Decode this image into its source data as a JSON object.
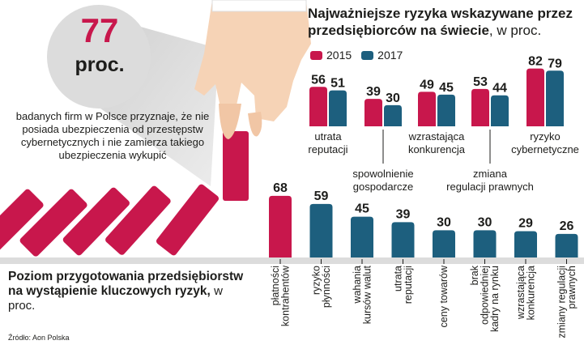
{
  "colors": {
    "red": "#c8174c",
    "teal": "#1d5f7e",
    "grey": "#dcdcdc",
    "black": "#1d1d1b"
  },
  "headline": {
    "value": "77",
    "unit": "proc."
  },
  "description": "badanych firm w Polsce przyznaje, że nie posiada ubezpieczenia od przestępstw cybernetycznych i nie zamierza takiego ubezpieczenia wykupić",
  "source": "Źródło: Aon Polska",
  "chart_data": [
    {
      "type": "bar",
      "title": "Najważniejsze ryzyka wskazywane przez przedsiębiorców na świecie",
      "title_unit": ", w proc.",
      "categories": [
        [
          "utrata",
          "reputacji"
        ],
        [
          "spowolnienie",
          "gospodarcze"
        ],
        [
          "wzrastająca",
          "konkurencja"
        ],
        [
          "zmiana",
          "regulacji prawnych"
        ],
        [
          "ryzyko",
          "cybernetyczne"
        ]
      ],
      "series": [
        {
          "name": "2015",
          "values": [
            56,
            39,
            49,
            53,
            82
          ]
        },
        {
          "name": "2017",
          "values": [
            51,
            30,
            45,
            44,
            79
          ]
        }
      ],
      "legend": "top-left"
    },
    {
      "type": "bar",
      "title": "Poziom przygotowania przedsiębiorstw na wystąpienie kluczowych ryzyk,",
      "title_unit": "w proc.",
      "categories": [
        [
          "płatności",
          "kontrahentów"
        ],
        [
          "ryzyko",
          "płynności"
        ],
        [
          "wahania",
          "kursów walut"
        ],
        [
          "utrata",
          "reputacji"
        ],
        [
          "ceny towarów"
        ],
        [
          "brak",
          "odpowiedniej",
          "kadry na rynku"
        ],
        [
          "wzrastająca",
          "konkurencja"
        ],
        [
          "zmiany regulacji",
          "prawnych"
        ]
      ],
      "values": [
        68,
        59,
        45,
        39,
        30,
        30,
        29,
        26
      ]
    }
  ]
}
